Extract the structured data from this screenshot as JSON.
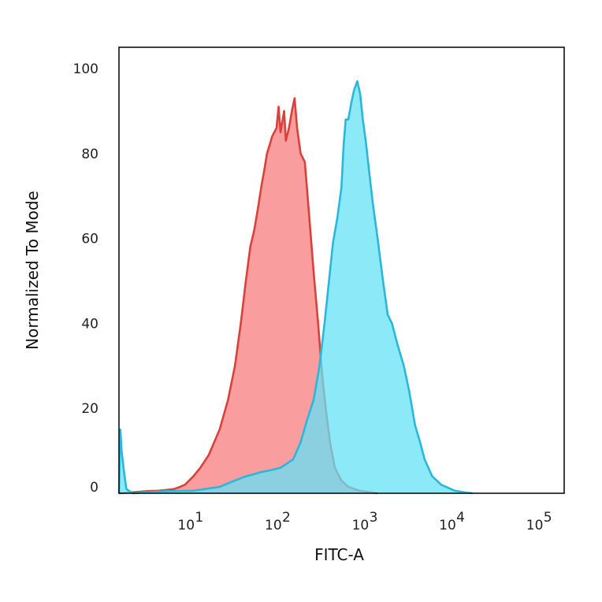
{
  "chart_data": {
    "type": "area",
    "xlabel": "FITC-A",
    "ylabel": "Normalized To Mode",
    "xscale": "log",
    "xlim": [
      1.4,
      180000
    ],
    "ylim": [
      0,
      105
    ],
    "x_ticks": [
      {
        "value": 10,
        "base": "10",
        "exp": "1"
      },
      {
        "value": 100,
        "base": "10",
        "exp": "2"
      },
      {
        "value": 1000,
        "base": "10",
        "exp": "3"
      },
      {
        "value": 10000,
        "base": "10",
        "exp": "4"
      },
      {
        "value": 100000,
        "base": "10",
        "exp": "5"
      }
    ],
    "y_ticks": [
      {
        "value": 0,
        "label": "0"
      },
      {
        "value": 20,
        "label": "20"
      },
      {
        "value": 40,
        "label": "40"
      },
      {
        "value": 60,
        "label": "60"
      },
      {
        "value": 80,
        "label": "80"
      },
      {
        "value": 100,
        "label": "100"
      }
    ],
    "series": [
      {
        "fill": "#fa9d9f",
        "stroke": "#d9413b",
        "points": [
          [
            1.4,
            0
          ],
          [
            3,
            0.5
          ],
          [
            4,
            0.6
          ],
          [
            5,
            0.8
          ],
          [
            6,
            1
          ],
          [
            7,
            1.5
          ],
          [
            8,
            2
          ],
          [
            10,
            4
          ],
          [
            12,
            6
          ],
          [
            15,
            9
          ],
          [
            20,
            15
          ],
          [
            25,
            22
          ],
          [
            30,
            30
          ],
          [
            35,
            40
          ],
          [
            40,
            50
          ],
          [
            45,
            58
          ],
          [
            50,
            62
          ],
          [
            55,
            67
          ],
          [
            60,
            72
          ],
          [
            65,
            76
          ],
          [
            70,
            80
          ],
          [
            75,
            82
          ],
          [
            80,
            84
          ],
          [
            90,
            86
          ],
          [
            95,
            91
          ],
          [
            100,
            85
          ],
          [
            110,
            90
          ],
          [
            115,
            83
          ],
          [
            125,
            86
          ],
          [
            135,
            90
          ],
          [
            145,
            93
          ],
          [
            155,
            86
          ],
          [
            170,
            80
          ],
          [
            190,
            78
          ],
          [
            210,
            67
          ],
          [
            240,
            52
          ],
          [
            270,
            40
          ],
          [
            300,
            28
          ],
          [
            330,
            20
          ],
          [
            370,
            12
          ],
          [
            420,
            6
          ],
          [
            500,
            3
          ],
          [
            600,
            1.5
          ],
          [
            800,
            0.6
          ],
          [
            1100,
            0.2
          ],
          [
            1300,
            0
          ]
        ]
      },
      {
        "fill": "#66e1f5",
        "stroke": "#2bb7d9",
        "points": [
          [
            1.4,
            0
          ],
          [
            1.45,
            15
          ],
          [
            1.5,
            10
          ],
          [
            1.6,
            5
          ],
          [
            1.7,
            1
          ],
          [
            2,
            0
          ],
          [
            5,
            0.5
          ],
          [
            10,
            0.6
          ],
          [
            20,
            1.5
          ],
          [
            30,
            3
          ],
          [
            40,
            4
          ],
          [
            50,
            4.5
          ],
          [
            60,
            5
          ],
          [
            80,
            5.5
          ],
          [
            100,
            6
          ],
          [
            140,
            8
          ],
          [
            170,
            12
          ],
          [
            200,
            17
          ],
          [
            240,
            22
          ],
          [
            280,
            30
          ],
          [
            320,
            40
          ],
          [
            360,
            50
          ],
          [
            400,
            59
          ],
          [
            450,
            65
          ],
          [
            500,
            72
          ],
          [
            530,
            82
          ],
          [
            560,
            88
          ],
          [
            600,
            88
          ],
          [
            650,
            92
          ],
          [
            700,
            95
          ],
          [
            760,
            97
          ],
          [
            820,
            94
          ],
          [
            880,
            88
          ],
          [
            950,
            83
          ],
          [
            1050,
            75
          ],
          [
            1150,
            68
          ],
          [
            1300,
            60
          ],
          [
            1500,
            50
          ],
          [
            1700,
            42
          ],
          [
            1900,
            40
          ],
          [
            2200,
            35
          ],
          [
            2600,
            30
          ],
          [
            3000,
            24
          ],
          [
            3500,
            16
          ],
          [
            4000,
            12
          ],
          [
            4500,
            8
          ],
          [
            5500,
            4
          ],
          [
            7000,
            2
          ],
          [
            10000,
            0.6
          ],
          [
            13000,
            0.2
          ],
          [
            16000,
            0
          ]
        ]
      }
    ]
  }
}
